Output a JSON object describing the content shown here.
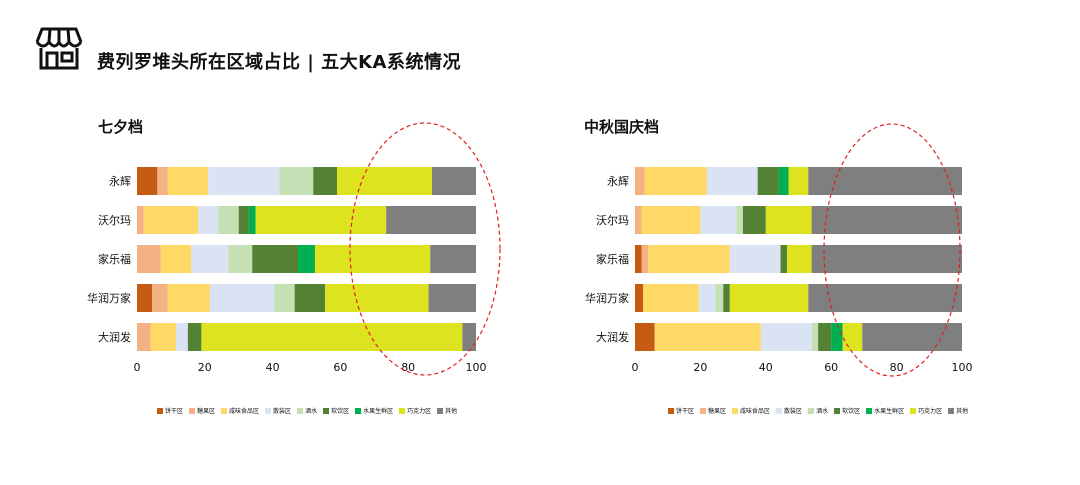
{
  "title": "费列罗堆头所在区域占比 | 五大KA系统情况",
  "categories_legend": [
    "饼干区",
    "糖果区",
    "咸味食品区",
    "散装区",
    "酒水",
    "软饮区",
    "水果生鲜区",
    "巧克力区",
    "其他"
  ],
  "colors": [
    "#c55a11",
    "#f4b183",
    "#ffd966",
    "#dae3f3",
    "#c5e0b4",
    "#548235",
    "#00b050",
    "#dde41f",
    "#7f7f7f"
  ],
  "chart_data": [
    {
      "type": "bar",
      "orientation": "horizontal",
      "stacked": true,
      "title": "七夕档",
      "categories": [
        "永辉",
        "沃尔玛",
        "家乐福",
        "华润万家",
        "大润发"
      ],
      "xlim": [
        0,
        100
      ],
      "xticks": [
        "0",
        "20",
        "40",
        "60",
        "80",
        "100"
      ],
      "series": [
        {
          "name": "饼干区",
          "values": [
            6,
            0,
            0,
            4.5,
            0
          ]
        },
        {
          "name": "糖果区",
          "values": [
            3,
            2,
            7,
            4.5,
            4
          ]
        },
        {
          "name": "咸味食品区",
          "values": [
            12,
            16,
            9,
            12.5,
            7.5
          ]
        },
        {
          "name": "散装区",
          "values": [
            21,
            6,
            11,
            19,
            3.5
          ]
        },
        {
          "name": "酒水",
          "values": [
            10,
            6,
            7,
            6,
            0
          ]
        },
        {
          "name": "软饮区",
          "values": [
            7,
            3,
            13.5,
            9,
            4
          ]
        },
        {
          "name": "水果生鲜区",
          "values": [
            0,
            2,
            5,
            0,
            0
          ]
        },
        {
          "name": "巧克力区",
          "values": [
            28,
            38.5,
            34,
            30.5,
            77
          ]
        },
        {
          "name": "其他",
          "values": [
            13,
            26.5,
            13.5,
            14,
            4
          ]
        }
      ]
    },
    {
      "type": "bar",
      "orientation": "horizontal",
      "stacked": true,
      "title": "中秋国庆档",
      "categories": [
        "永辉",
        "沃尔玛",
        "家乐福",
        "华润万家",
        "大润发"
      ],
      "xlim": [
        0,
        100
      ],
      "xticks": [
        "0",
        "20",
        "40",
        "60",
        "80",
        "100"
      ],
      "series": [
        {
          "name": "饼干区",
          "values": [
            0,
            0,
            2,
            2.5,
            6
          ]
        },
        {
          "name": "糖果区",
          "values": [
            3,
            2,
            2,
            0,
            0
          ]
        },
        {
          "name": "咸味食品区",
          "values": [
            19,
            18,
            25,
            17,
            32.5
          ]
        },
        {
          "name": "散装区",
          "values": [
            15.5,
            11,
            15.5,
            5,
            15.5
          ]
        },
        {
          "name": "酒水",
          "values": [
            0,
            2,
            0,
            2.5,
            2
          ]
        },
        {
          "name": "软饮区",
          "values": [
            6.5,
            7,
            2,
            2,
            4
          ]
        },
        {
          "name": "水果生鲜区",
          "values": [
            3,
            0,
            0,
            0,
            3.5
          ]
        },
        {
          "name": "巧克力区",
          "values": [
            6,
            14,
            7.5,
            24,
            6
          ]
        },
        {
          "name": "其他",
          "values": [
            47,
            46,
            46,
            47,
            30.5
          ]
        }
      ]
    }
  ]
}
